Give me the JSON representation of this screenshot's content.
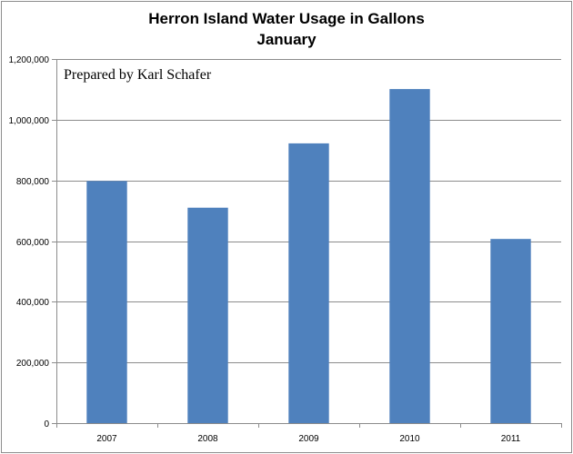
{
  "chart_data": {
    "type": "bar",
    "title": "Herron Island Water Usage in Gallons",
    "subtitle": "January",
    "annotation": "Prepared by Karl Schafer",
    "categories": [
      "2007",
      "2008",
      "2009",
      "2010",
      "2011"
    ],
    "values": [
      798000,
      710000,
      922000,
      1101000,
      607000
    ],
    "ylim": [
      0,
      1200000
    ],
    "ytick_values": [
      0,
      200000,
      400000,
      600000,
      800000,
      1000000,
      1200000
    ],
    "ytick_labels": [
      "0",
      "200,000",
      "400,000",
      "600,000",
      "800,000",
      "1,000,000",
      "1,200,000"
    ],
    "xlabel": "",
    "ylabel": "",
    "grid": true,
    "legend": "none",
    "bar_color": "#4f81bd"
  }
}
